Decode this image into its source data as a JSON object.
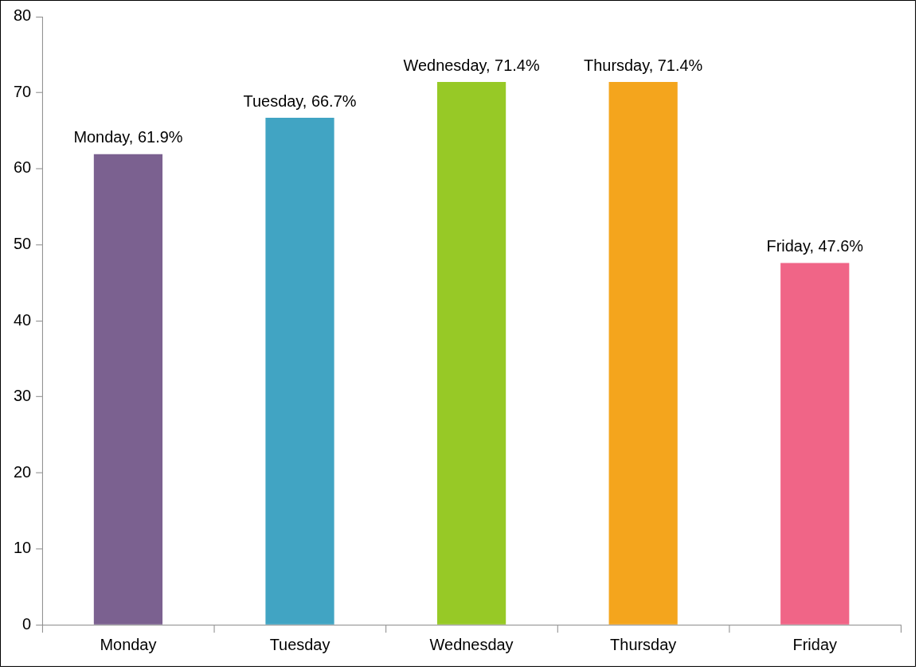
{
  "chart_data": {
    "type": "bar",
    "categories": [
      "Monday",
      "Tuesday",
      "Wednesday",
      "Thursday",
      "Friday"
    ],
    "values": [
      61.9,
      66.7,
      71.4,
      71.4,
      47.6
    ],
    "colors": [
      "#7b6190",
      "#41a4c3",
      "#97c926",
      "#f4a51d",
      "#f06587"
    ],
    "value_labels": [
      "Monday, 61.9%",
      "Tuesday, 66.7%",
      "Wednesday, 71.4%",
      "Thursday, 71.4%",
      "Friday, 47.6%"
    ],
    "ylim": [
      0,
      80
    ],
    "yticks": [
      0,
      10,
      20,
      30,
      40,
      50,
      60,
      70,
      80
    ],
    "grid": false,
    "legend": false
  }
}
